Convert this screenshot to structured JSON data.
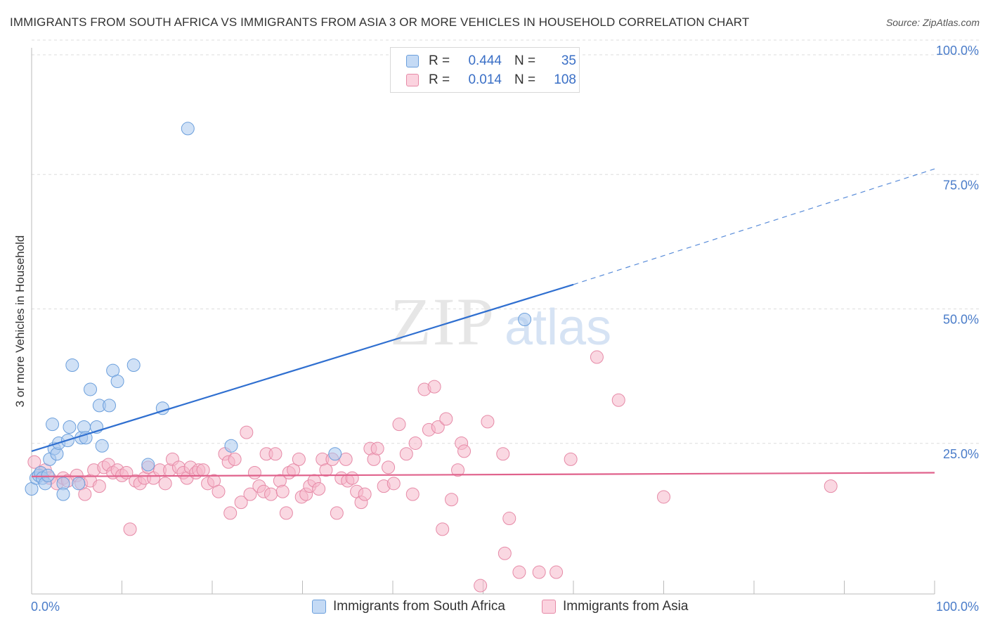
{
  "title": "IMMIGRANTS FROM SOUTH AFRICA VS IMMIGRANTS FROM ASIA 3 OR MORE VEHICLES IN HOUSEHOLD CORRELATION CHART",
  "source": "Source: ZipAtlas.com",
  "watermark": {
    "zip": "ZIP",
    "atlas": "atlas"
  },
  "legend": {
    "rows": [
      {
        "r_label": "R =",
        "r_value": "0.444",
        "n_label": "N =",
        "n_value": "35",
        "color": "#a9c8ef"
      },
      {
        "r_label": "R =",
        "r_value": "0.014",
        "n_label": "N =",
        "n_value": "108",
        "color": "#f5b8cb"
      }
    ]
  },
  "colors": {
    "blue_fill": "#a9c8ef",
    "blue_stroke": "#6b9fdc",
    "blue_line": "#2f6fd0",
    "pink_fill": "#f5b8cb",
    "pink_stroke": "#e68aa7",
    "pink_line": "#e0628c",
    "axis_label": "#4a7cc9",
    "grid": "#dddddd"
  },
  "chart_data": {
    "type": "scatter",
    "title": "IMMIGRANTS FROM SOUTH AFRICA VS IMMIGRANTS FROM ASIA 3 OR MORE VEHICLES IN HOUSEHOLD CORRELATION CHART",
    "xlabel": "",
    "ylabel": "3 or more Vehicles in Household",
    "xlim": [
      0,
      100
    ],
    "ylim": [
      0,
      100
    ],
    "x_tick_labels": [
      "0.0%",
      "100.0%"
    ],
    "y_tick_labels": [
      "25.0%",
      "50.0%",
      "75.0%",
      "100.0%"
    ],
    "y_ticks": [
      25,
      50,
      75,
      100
    ],
    "grid": true,
    "legend_position": "top-center",
    "series": [
      {
        "name": "Immigrants from South Africa",
        "color": "#a9c8ef",
        "points": [
          [
            0.0,
            18.5
          ],
          [
            0.5,
            20.5
          ],
          [
            0.8,
            21.0
          ],
          [
            1.0,
            21.5
          ],
          [
            1.2,
            20.5
          ],
          [
            1.5,
            19.5
          ],
          [
            1.8,
            21.0
          ],
          [
            2.0,
            24.0
          ],
          [
            2.3,
            30.5
          ],
          [
            2.5,
            26.0
          ],
          [
            2.8,
            25.0
          ],
          [
            3.0,
            27.0
          ],
          [
            3.5,
            19.5
          ],
          [
            3.5,
            17.5
          ],
          [
            4.0,
            27.5
          ],
          [
            4.2,
            30.0
          ],
          [
            4.5,
            41.5
          ],
          [
            5.2,
            19.5
          ],
          [
            5.5,
            28.0
          ],
          [
            5.8,
            30.0
          ],
          [
            6.0,
            28.0
          ],
          [
            6.5,
            37.0
          ],
          [
            7.2,
            30.0
          ],
          [
            7.5,
            34.0
          ],
          [
            7.8,
            26.5
          ],
          [
            8.6,
            34.0
          ],
          [
            9.0,
            40.5
          ],
          [
            9.5,
            38.5
          ],
          [
            11.3,
            41.5
          ],
          [
            12.9,
            23.0
          ],
          [
            14.5,
            33.5
          ],
          [
            17.3,
            85.5
          ],
          [
            22.1,
            26.5
          ],
          [
            33.6,
            25.0
          ],
          [
            54.6,
            50.0
          ]
        ],
        "trend": {
          "x": [
            0,
            60
          ],
          "y": [
            25.5,
            56.5
          ],
          "dashed_extension": {
            "x": [
              60,
              100
            ],
            "y": [
              56.5,
              78.0
            ]
          }
        }
      },
      {
        "name": "Immigrants from Asia",
        "color": "#f5b8cb",
        "points": [
          [
            0.3,
            23.5
          ],
          [
            1.0,
            21.5
          ],
          [
            1.5,
            22.0
          ],
          [
            2.0,
            20.5
          ],
          [
            2.8,
            19.5
          ],
          [
            3.5,
            20.5
          ],
          [
            4.0,
            20.0
          ],
          [
            5.0,
            21.0
          ],
          [
            5.5,
            19.5
          ],
          [
            5.9,
            17.5
          ],
          [
            6.5,
            20.0
          ],
          [
            6.9,
            22.0
          ],
          [
            7.5,
            19.0
          ],
          [
            8.0,
            22.5
          ],
          [
            8.5,
            23.0
          ],
          [
            9.0,
            21.5
          ],
          [
            9.5,
            22.0
          ],
          [
            10.0,
            21.0
          ],
          [
            10.5,
            21.5
          ],
          [
            10.9,
            11.0
          ],
          [
            11.5,
            20.0
          ],
          [
            12.0,
            19.5
          ],
          [
            12.5,
            20.5
          ],
          [
            12.9,
            22.5
          ],
          [
            13.5,
            20.5
          ],
          [
            14.2,
            22.0
          ],
          [
            14.8,
            19.5
          ],
          [
            15.3,
            22.0
          ],
          [
            15.6,
            24.0
          ],
          [
            16.3,
            22.5
          ],
          [
            16.8,
            21.5
          ],
          [
            17.2,
            20.5
          ],
          [
            17.6,
            22.5
          ],
          [
            18.2,
            21.5
          ],
          [
            18.5,
            22.0
          ],
          [
            19.0,
            22.0
          ],
          [
            19.5,
            19.5
          ],
          [
            20.2,
            20.0
          ],
          [
            20.7,
            18.0
          ],
          [
            21.4,
            25.0
          ],
          [
            21.8,
            23.5
          ],
          [
            22.0,
            14.0
          ],
          [
            22.5,
            24.0
          ],
          [
            23.2,
            16.0
          ],
          [
            23.8,
            29.0
          ],
          [
            24.2,
            17.5
          ],
          [
            24.7,
            21.5
          ],
          [
            25.2,
            19.0
          ],
          [
            25.7,
            18.0
          ],
          [
            26.0,
            25.0
          ],
          [
            26.5,
            17.5
          ],
          [
            27.0,
            25.0
          ],
          [
            27.5,
            20.0
          ],
          [
            27.8,
            18.0
          ],
          [
            28.2,
            14.0
          ],
          [
            28.5,
            21.5
          ],
          [
            29.0,
            22.0
          ],
          [
            29.6,
            24.0
          ],
          [
            29.9,
            17.0
          ],
          [
            30.4,
            17.5
          ],
          [
            30.8,
            19.0
          ],
          [
            31.3,
            20.0
          ],
          [
            31.8,
            18.5
          ],
          [
            32.2,
            24.0
          ],
          [
            32.6,
            22.0
          ],
          [
            33.3,
            24.0
          ],
          [
            33.8,
            14.0
          ],
          [
            34.3,
            20.5
          ],
          [
            34.8,
            24.0
          ],
          [
            35.0,
            20.0
          ],
          [
            35.5,
            20.5
          ],
          [
            36.0,
            18.0
          ],
          [
            36.5,
            16.0
          ],
          [
            36.9,
            17.5
          ],
          [
            37.5,
            26.0
          ],
          [
            37.9,
            24.0
          ],
          [
            38.3,
            26.0
          ],
          [
            39.0,
            19.0
          ],
          [
            39.5,
            22.5
          ],
          [
            40.1,
            19.5
          ],
          [
            40.7,
            30.5
          ],
          [
            41.5,
            25.0
          ],
          [
            42.2,
            17.5
          ],
          [
            42.5,
            27.0
          ],
          [
            43.5,
            37.0
          ],
          [
            44.0,
            29.5
          ],
          [
            44.6,
            37.5
          ],
          [
            45.0,
            30.0
          ],
          [
            45.5,
            11.0
          ],
          [
            45.9,
            31.5
          ],
          [
            46.5,
            16.5
          ],
          [
            47.2,
            22.0
          ],
          [
            47.6,
            27.0
          ],
          [
            47.9,
            25.5
          ],
          [
            49.7,
            0.5
          ],
          [
            50.5,
            31.0
          ],
          [
            52.2,
            25.0
          ],
          [
            52.4,
            6.5
          ],
          [
            52.9,
            13.0
          ],
          [
            54.0,
            3.0
          ],
          [
            56.2,
            3.0
          ],
          [
            58.1,
            3.0
          ],
          [
            59.7,
            24.0
          ],
          [
            62.6,
            43.0
          ],
          [
            65.0,
            35.0
          ],
          [
            70.0,
            17.0
          ],
          [
            88.5,
            19.0
          ]
        ],
        "trend": {
          "x": [
            0,
            100
          ],
          "y": [
            20.8,
            21.5
          ]
        }
      }
    ]
  },
  "bottom_legend": [
    "Immigrants from South Africa",
    "Immigrants from Asia"
  ]
}
